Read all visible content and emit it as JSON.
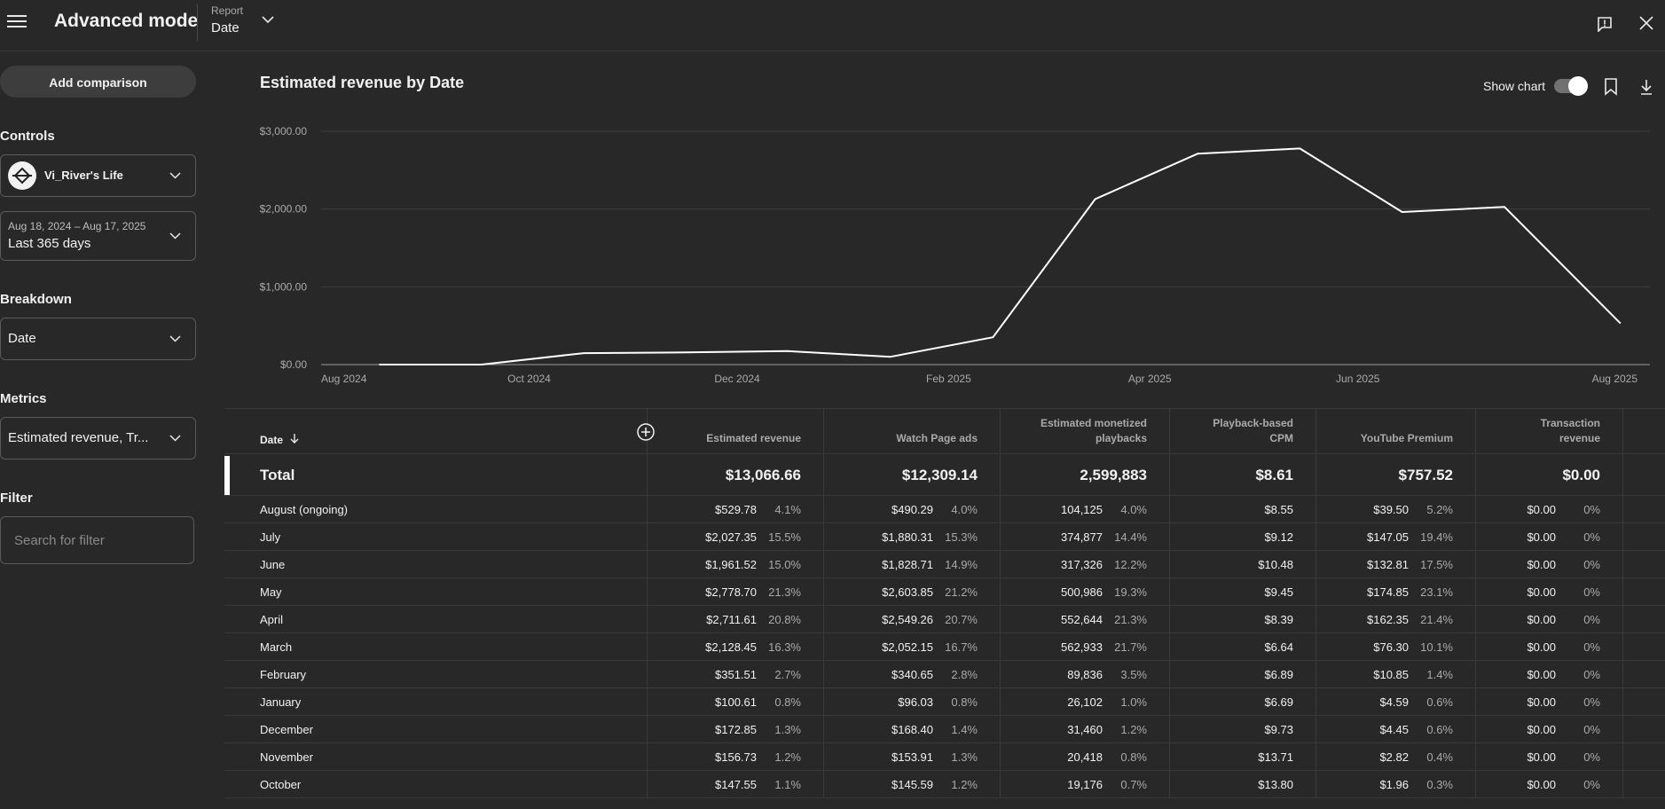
{
  "header": {
    "app_title": "Advanced mode",
    "report_label": "Report",
    "report_value": "Date"
  },
  "sidebar": {
    "add_comparison": "Add comparison",
    "controls_label": "Controls",
    "channel_name": "Vi_River's Life",
    "date_range": "Aug 18, 2024 – Aug 17, 2025",
    "date_preset": "Last 365 days",
    "breakdown_label": "Breakdown",
    "breakdown_value": "Date",
    "metrics_label": "Metrics",
    "metrics_value": "Estimated revenue, Tr...",
    "filter_label": "Filter",
    "filter_placeholder": "Search for filter"
  },
  "chart_panel": {
    "title": "Estimated revenue by Date",
    "show_chart_label": "Show chart",
    "show_chart_on": true
  },
  "chart_data": {
    "type": "line",
    "title": "Estimated revenue by Date",
    "y_ticks": [
      "$0.00",
      "$1,000.00",
      "$2,000.00",
      "$3,000.00"
    ],
    "ylim": [
      0,
      3000
    ],
    "x_ticks": [
      "Aug 2024",
      "Oct 2024",
      "Dec 2024",
      "Feb 2025",
      "Apr 2025",
      "Jun 2025",
      "Aug 2025"
    ],
    "grid": true,
    "line_color": "#ffffff",
    "series": [
      {
        "x": [
          "2024-08-18",
          "2024-09-17",
          "2024-10-17",
          "2024-11-16",
          "2024-12-16",
          "2025-01-15",
          "2025-02-14",
          "2025-03-16",
          "2025-04-15",
          "2025-05-15",
          "2025-06-14",
          "2025-07-14",
          "2025-08-17"
        ],
        "values": [
          0,
          0,
          147.55,
          156.73,
          172.85,
          100.61,
          351.51,
          2128.45,
          2711.61,
          2778.7,
          1961.52,
          2027.35,
          529.78
        ]
      }
    ]
  },
  "table": {
    "date_header": "Date",
    "columns": [
      "Estimated revenue",
      "Watch Page ads",
      "Estimated monetized playbacks",
      "Playback-based CPM",
      "YouTube Premium",
      "Transaction revenue"
    ],
    "totals": [
      "$13,066.66",
      "$12,309.14",
      "2,599,883",
      "$8.61",
      "$757.52",
      "$0.00"
    ],
    "total_label": "Total",
    "rows": [
      {
        "label": "August (ongoing)",
        "rev": "$529.78",
        "rev_p": "4.1%",
        "wp": "$490.29",
        "wp_p": "4.0%",
        "mp": "104,125",
        "mp_p": "4.0%",
        "cpm": "$8.55",
        "yp": "$39.50",
        "yp_p": "5.2%",
        "tr": "$0.00",
        "tr_p": "0%"
      },
      {
        "label": "July",
        "rev": "$2,027.35",
        "rev_p": "15.5%",
        "wp": "$1,880.31",
        "wp_p": "15.3%",
        "mp": "374,877",
        "mp_p": "14.4%",
        "cpm": "$9.12",
        "yp": "$147.05",
        "yp_p": "19.4%",
        "tr": "$0.00",
        "tr_p": "0%"
      },
      {
        "label": "June",
        "rev": "$1,961.52",
        "rev_p": "15.0%",
        "wp": "$1,828.71",
        "wp_p": "14.9%",
        "mp": "317,326",
        "mp_p": "12.2%",
        "cpm": "$10.48",
        "yp": "$132.81",
        "yp_p": "17.5%",
        "tr": "$0.00",
        "tr_p": "0%"
      },
      {
        "label": "May",
        "rev": "$2,778.70",
        "rev_p": "21.3%",
        "wp": "$2,603.85",
        "wp_p": "21.2%",
        "mp": "500,986",
        "mp_p": "19.3%",
        "cpm": "$9.45",
        "yp": "$174.85",
        "yp_p": "23.1%",
        "tr": "$0.00",
        "tr_p": "0%"
      },
      {
        "label": "April",
        "rev": "$2,711.61",
        "rev_p": "20.8%",
        "wp": "$2,549.26",
        "wp_p": "20.7%",
        "mp": "552,644",
        "mp_p": "21.3%",
        "cpm": "$8.39",
        "yp": "$162.35",
        "yp_p": "21.4%",
        "tr": "$0.00",
        "tr_p": "0%"
      },
      {
        "label": "March",
        "rev": "$2,128.45",
        "rev_p": "16.3%",
        "wp": "$2,052.15",
        "wp_p": "16.7%",
        "mp": "562,933",
        "mp_p": "21.7%",
        "cpm": "$6.64",
        "yp": "$76.30",
        "yp_p": "10.1%",
        "tr": "$0.00",
        "tr_p": "0%"
      },
      {
        "label": "February",
        "rev": "$351.51",
        "rev_p": "2.7%",
        "wp": "$340.65",
        "wp_p": "2.8%",
        "mp": "89,836",
        "mp_p": "3.5%",
        "cpm": "$6.89",
        "yp": "$10.85",
        "yp_p": "1.4%",
        "tr": "$0.00",
        "tr_p": "0%"
      },
      {
        "label": "January",
        "rev": "$100.61",
        "rev_p": "0.8%",
        "wp": "$96.03",
        "wp_p": "0.8%",
        "mp": "26,102",
        "mp_p": "1.0%",
        "cpm": "$6.69",
        "yp": "$4.59",
        "yp_p": "0.6%",
        "tr": "$0.00",
        "tr_p": "0%"
      },
      {
        "label": "December",
        "rev": "$172.85",
        "rev_p": "1.3%",
        "wp": "$168.40",
        "wp_p": "1.4%",
        "mp": "31,460",
        "mp_p": "1.2%",
        "cpm": "$9.73",
        "yp": "$4.45",
        "yp_p": "0.6%",
        "tr": "$0.00",
        "tr_p": "0%"
      },
      {
        "label": "November",
        "rev": "$156.73",
        "rev_p": "1.2%",
        "wp": "$153.91",
        "wp_p": "1.3%",
        "mp": "20,418",
        "mp_p": "0.8%",
        "cpm": "$13.71",
        "yp": "$2.82",
        "yp_p": "0.4%",
        "tr": "$0.00",
        "tr_p": "0%"
      },
      {
        "label": "October",
        "rev": "$147.55",
        "rev_p": "1.1%",
        "wp": "$145.59",
        "wp_p": "1.2%",
        "mp": "19,176",
        "mp_p": "0.7%",
        "cpm": "$13.80",
        "yp": "$1.96",
        "yp_p": "0.3%",
        "tr": "$0.00",
        "tr_p": "0%"
      }
    ]
  },
  "colors": {
    "background": "#282828",
    "text": "#f1f1f1",
    "muted_text": "#aaaaaa",
    "border": "#3a3a3a"
  }
}
